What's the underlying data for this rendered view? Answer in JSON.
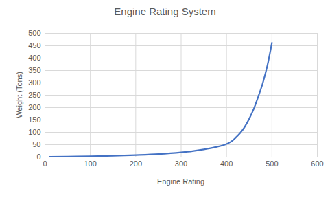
{
  "chart_data": {
    "type": "line",
    "title": "Engine Rating System",
    "x_label": "Engine Rating",
    "y_label": "Weight (Tons)",
    "x": [
      10,
      50,
      100,
      150,
      200,
      250,
      300,
      325,
      350,
      375,
      400,
      410,
      420,
      430,
      440,
      450,
      460,
      470,
      480,
      490,
      500
    ],
    "series": [
      {
        "name": "Weight",
        "color": "#4472c4",
        "values": [
          1,
          2,
          3,
          5,
          8,
          12,
          19,
          24,
          31,
          40,
          53,
          62,
          78,
          97,
          122,
          155,
          195,
          245,
          300,
          370,
          462
        ]
      }
    ],
    "xlim": [
      0,
      600
    ],
    "xticks": [
      0,
      100,
      200,
      300,
      400,
      500,
      600
    ],
    "ylim": [
      0,
      500
    ],
    "yticks": [
      0,
      50,
      100,
      150,
      200,
      250,
      300,
      350,
      400,
      450,
      500
    ],
    "grid": true
  }
}
